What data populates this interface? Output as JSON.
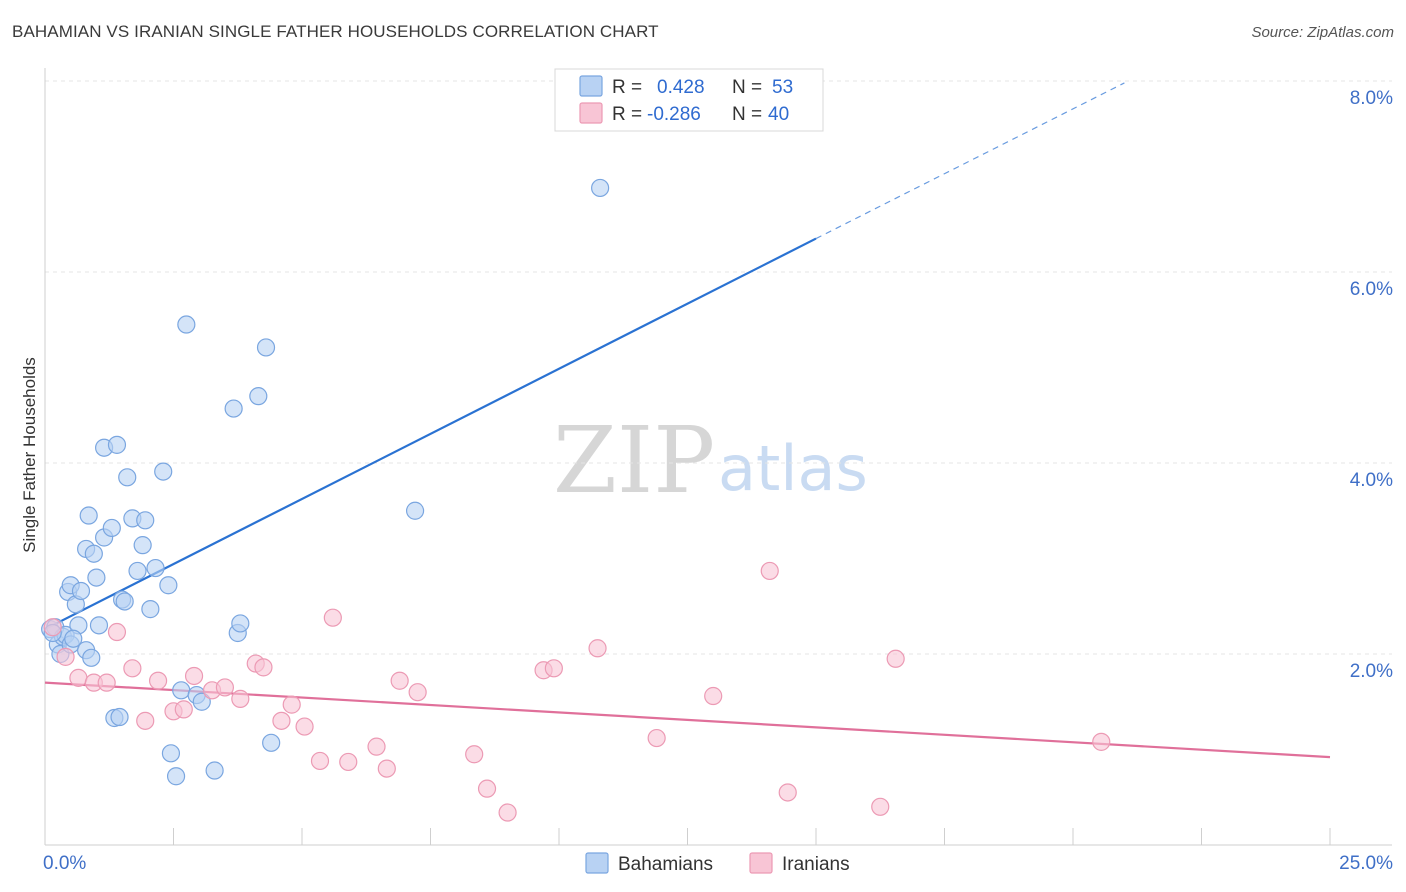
{
  "title": "BAHAMIAN VS IRANIAN SINGLE FATHER HOUSEHOLDS CORRELATION CHART",
  "source": "Source: ZipAtlas.com",
  "watermark": {
    "zip": "ZIP",
    "atlas": "atlas"
  },
  "colors": {
    "blue_fill": "#b8d2f3",
    "blue_stroke": "#7aa6e0",
    "blue_line": "#2a72d2",
    "pink_fill": "#f8c5d5",
    "pink_stroke": "#ec9ab4",
    "pink_line": "#e0709a",
    "grid": "#e4e4e4",
    "tick_text": "#3f6fc7"
  },
  "legend": {
    "rows": [
      {
        "r_label": "R =",
        "r_value": "0.428",
        "n_label": "N =",
        "n_value": "53"
      },
      {
        "r_label": "R =",
        "r_value": "-0.286",
        "n_label": "N =",
        "n_value": "40"
      }
    ]
  },
  "chart_data": {
    "type": "scatter",
    "title": "BAHAMIAN VS IRANIAN SINGLE FATHER HOUSEHOLDS CORRELATION CHART",
    "xlabel": "",
    "ylabel": "Single Father Households",
    "xlim": [
      0,
      25
    ],
    "ylim": [
      0,
      8.0
    ],
    "x_tick_labels": [
      "0.0%",
      "25.0%"
    ],
    "y_ticks": [
      2,
      4,
      6,
      8
    ],
    "y_tick_labels": [
      "2.0%",
      "4.0%",
      "6.0%",
      "8.0%"
    ],
    "series": [
      {
        "name": "Bahamians",
        "color": "blue",
        "trend": {
          "x0": 0,
          "y0": 2.26,
          "x1": 15.0,
          "y1": 6.35,
          "dash_to_x": 21.0,
          "dash_to_y": 7.98
        },
        "points": [
          [
            0.1,
            2.26
          ],
          [
            0.2,
            2.28
          ],
          [
            0.25,
            2.1
          ],
          [
            0.3,
            2.0
          ],
          [
            0.35,
            2.18
          ],
          [
            0.4,
            2.2
          ],
          [
            0.45,
            2.65
          ],
          [
            0.5,
            2.1
          ],
          [
            0.5,
            2.72
          ],
          [
            0.6,
            2.52
          ],
          [
            0.65,
            2.3
          ],
          [
            0.7,
            2.66
          ],
          [
            0.8,
            2.04
          ],
          [
            0.8,
            3.1
          ],
          [
            0.85,
            3.45
          ],
          [
            0.9,
            1.96
          ],
          [
            0.95,
            3.05
          ],
          [
            1.0,
            2.8
          ],
          [
            1.05,
            2.3
          ],
          [
            1.15,
            3.22
          ],
          [
            1.15,
            4.16
          ],
          [
            1.3,
            3.32
          ],
          [
            1.4,
            4.19
          ],
          [
            1.35,
            1.33
          ],
          [
            1.45,
            1.34
          ],
          [
            1.5,
            2.57
          ],
          [
            1.55,
            2.55
          ],
          [
            1.6,
            3.85
          ],
          [
            1.7,
            3.42
          ],
          [
            1.8,
            2.87
          ],
          [
            1.9,
            3.14
          ],
          [
            1.95,
            3.4
          ],
          [
            2.05,
            2.47
          ],
          [
            2.15,
            2.9
          ],
          [
            2.3,
            3.91
          ],
          [
            2.4,
            2.72
          ],
          [
            2.45,
            0.96
          ],
          [
            2.55,
            0.72
          ],
          [
            2.65,
            1.62
          ],
          [
            2.75,
            5.45
          ],
          [
            2.95,
            1.57
          ],
          [
            3.05,
            1.5
          ],
          [
            3.3,
            0.78
          ],
          [
            3.67,
            4.57
          ],
          [
            3.75,
            2.22
          ],
          [
            3.8,
            2.32
          ],
          [
            4.15,
            4.7
          ],
          [
            4.3,
            5.21
          ],
          [
            4.4,
            1.07
          ],
          [
            7.2,
            3.5
          ],
          [
            10.8,
            6.88
          ],
          [
            0.15,
            2.22
          ],
          [
            0.55,
            2.16
          ]
        ]
      },
      {
        "name": "Iranians",
        "color": "pink",
        "trend": {
          "x0": 0,
          "y0": 1.7,
          "x1": 25.0,
          "y1": 0.92
        },
        "points": [
          [
            0.15,
            2.28
          ],
          [
            0.4,
            1.97
          ],
          [
            0.65,
            1.75
          ],
          [
            0.95,
            1.7
          ],
          [
            1.2,
            1.7
          ],
          [
            1.4,
            2.23
          ],
          [
            1.7,
            1.85
          ],
          [
            1.95,
            1.3
          ],
          [
            2.2,
            1.72
          ],
          [
            2.5,
            1.4
          ],
          [
            2.9,
            1.77
          ],
          [
            3.25,
            1.62
          ],
          [
            3.5,
            1.65
          ],
          [
            3.8,
            1.53
          ],
          [
            4.1,
            1.9
          ],
          [
            4.25,
            1.86
          ],
          [
            4.6,
            1.3
          ],
          [
            4.8,
            1.47
          ],
          [
            5.05,
            1.24
          ],
          [
            5.35,
            0.88
          ],
          [
            5.6,
            2.38
          ],
          [
            5.9,
            0.87
          ],
          [
            6.45,
            1.03
          ],
          [
            6.65,
            0.8
          ],
          [
            6.9,
            1.72
          ],
          [
            7.25,
            1.6
          ],
          [
            8.35,
            0.95
          ],
          [
            8.6,
            0.59
          ],
          [
            9.0,
            0.34
          ],
          [
            9.7,
            1.83
          ],
          [
            9.9,
            1.85
          ],
          [
            10.75,
            2.06
          ],
          [
            11.9,
            1.12
          ],
          [
            13.0,
            1.56
          ],
          [
            14.1,
            2.87
          ],
          [
            14.45,
            0.55
          ],
          [
            16.25,
            0.4
          ],
          [
            16.55,
            1.95
          ],
          [
            20.55,
            1.08
          ],
          [
            2.7,
            1.42
          ]
        ]
      }
    ]
  },
  "bottom_legend": [
    "Bahamians",
    "Iranians"
  ]
}
